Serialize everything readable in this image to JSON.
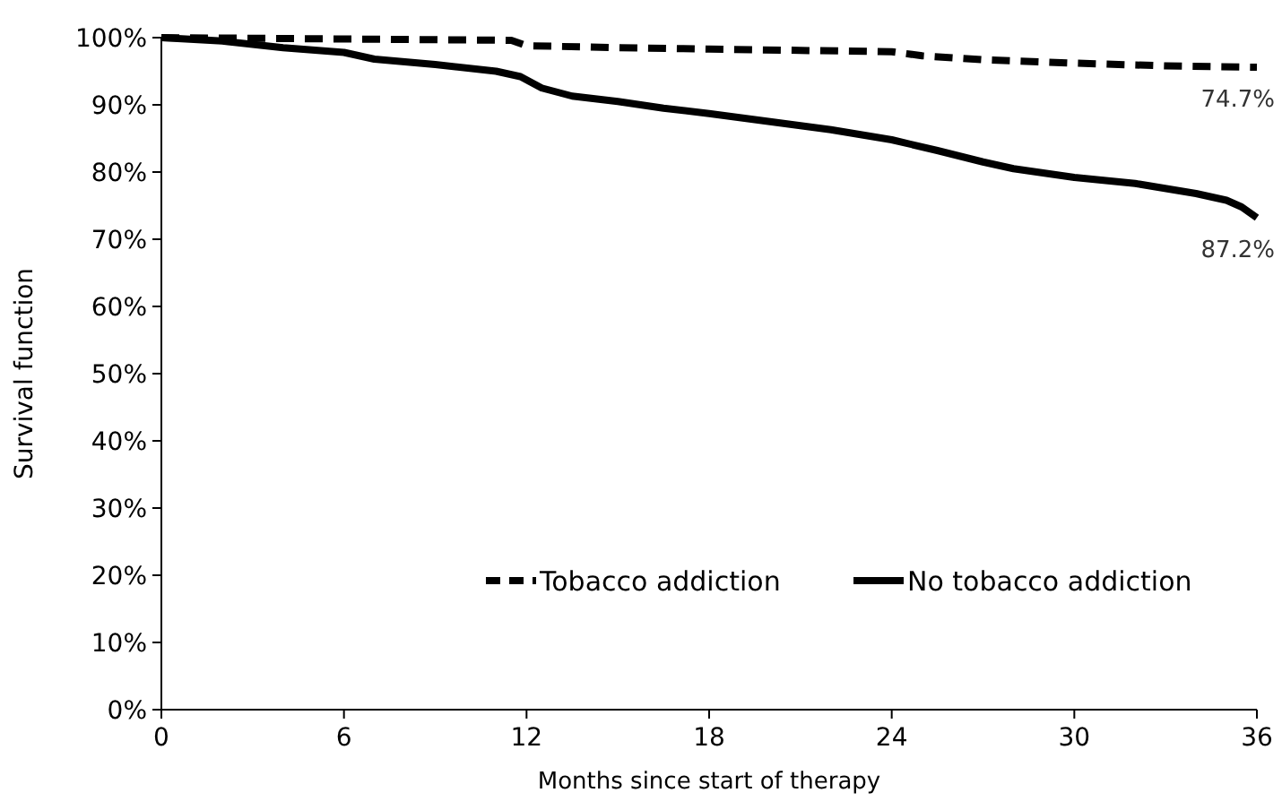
{
  "chart_data": {
    "type": "line",
    "xlabel": "Months since start of therapy",
    "ylabel": "Survival function",
    "xlim": [
      0,
      36
    ],
    "xticks": [
      0,
      6,
      12,
      18,
      24,
      30,
      36
    ],
    "ylim": [
      0,
      100
    ],
    "yticks": [
      {
        "value": 0,
        "label": "0%"
      },
      {
        "value": 10,
        "label": "10%"
      },
      {
        "value": 20,
        "label": "20%"
      },
      {
        "value": 30,
        "label": "30%"
      },
      {
        "value": 40,
        "label": "40%"
      },
      {
        "value": 50,
        "label": "50%"
      },
      {
        "value": 60,
        "label": "60%"
      },
      {
        "value": 70,
        "label": "70%"
      },
      {
        "value": 80,
        "label": "80%"
      },
      {
        "value": 90,
        "label": "90%"
      },
      {
        "value": 100,
        "label": "100%"
      }
    ],
    "grid": false,
    "legend": "bottom right",
    "annotations": [
      "74.7%",
      "87.2%"
    ],
    "series": [
      {
        "name": "Tobacco addiction",
        "color": "#000000",
        "line_style": "dashed",
        "x": [
          0,
          6,
          11.5,
          12,
          15,
          18,
          21,
          24,
          25,
          27,
          30,
          33,
          36
        ],
        "values": [
          100,
          99.8,
          99.6,
          98.8,
          98.5,
          98.3,
          98.1,
          97.9,
          97.3,
          96.7,
          96.2,
          95.8,
          95.6
        ]
      },
      {
        "name": "No tobacco addiction",
        "color": "#000000",
        "line_style": "solid",
        "x": [
          0,
          2,
          4,
          6,
          7,
          9,
          11,
          11.8,
          12.5,
          13.5,
          15,
          16.5,
          18,
          20,
          22,
          24,
          25.5,
          27,
          28,
          30,
          32,
          34,
          35,
          35.5,
          36
        ],
        "values": [
          100,
          99.5,
          98.5,
          97.8,
          96.8,
          96,
          95,
          94.2,
          92.5,
          91.3,
          90.5,
          89.5,
          88.7,
          87.5,
          86.3,
          84.8,
          83.2,
          81.5,
          80.5,
          79.2,
          78.3,
          76.8,
          75.8,
          74.8,
          73.2
        ]
      }
    ]
  }
}
